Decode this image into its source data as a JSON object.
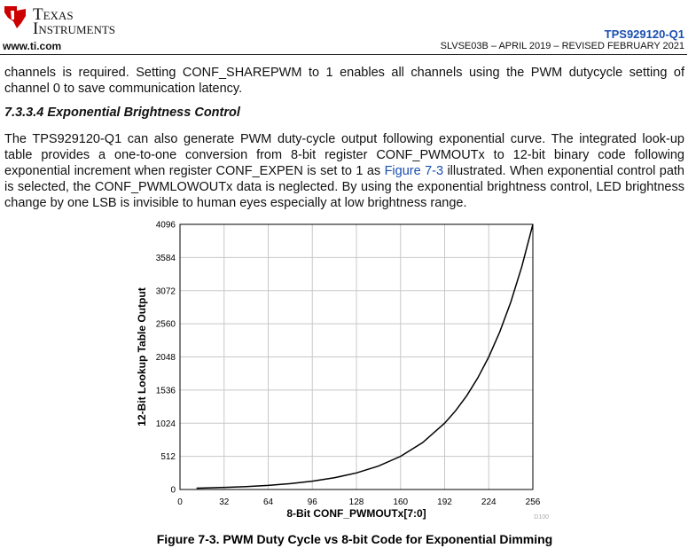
{
  "header": {
    "logo_lines": [
      "Texas",
      "Instruments"
    ],
    "website": "www.ti.com",
    "part_number": "TPS929120-Q1",
    "doc_info": "SLVSE03B – APRIL 2019 – REVISED FEBRUARY 2021"
  },
  "body": {
    "paragraph_1": "channels is required. Setting CONF_SHAREPWM to 1 enables all channels using the PWM dutycycle setting of channel 0 to save communication latency.",
    "heading": "7.3.3.4 Exponential Brightness Control",
    "paragraph_2": {
      "before": "The TPS929120-Q1 can also generate PWM duty-cycle output following exponential curve. The integrated look-up table provides a one-to-one conversion from 8-bit register CONF_PWMOUTx to 12-bit binary code following exponential increment when register CONF_EXPEN is set to 1 as ",
      "link": "Figure 7-3",
      "after": " illustrated. When exponential control path is selected, the CONF_PWMLOWOUTx data is neglected. By using the exponential brightness control, LED brightness change by one LSB is invisible to human eyes especially at low brightness range."
    }
  },
  "chart_data": {
    "type": "line",
    "x_label": "8-Bit CONF_PWMOUTx[7:0]",
    "y_label": "12-Bit Lookup Table Output",
    "figure_id": "D100",
    "x": [
      12,
      16,
      32,
      48,
      64,
      80,
      96,
      112,
      128,
      144,
      160,
      176,
      192,
      200,
      208,
      216,
      224,
      232,
      240,
      248,
      256
    ],
    "series": [
      {
        "color": "#000000",
        "values": [
          21,
          23,
          32,
          45,
          64,
          91,
          128,
          181,
          256,
          362,
          512,
          724,
          1024,
          1218,
          1448,
          1722,
          2048,
          2435,
          2896,
          3444,
          4096
        ]
      }
    ],
    "xlim": [
      0,
      256
    ],
    "ylim": [
      0,
      4096
    ],
    "xticks": [
      0,
      32,
      64,
      96,
      128,
      160,
      192,
      224,
      256
    ],
    "yticks": [
      0,
      512,
      1024,
      1536,
      2048,
      2560,
      3072,
      3584,
      4096
    ],
    "grid": true
  },
  "caption": "Figure 7-3. PWM Duty Cycle vs 8-bit Code for Exponential Dimming"
}
